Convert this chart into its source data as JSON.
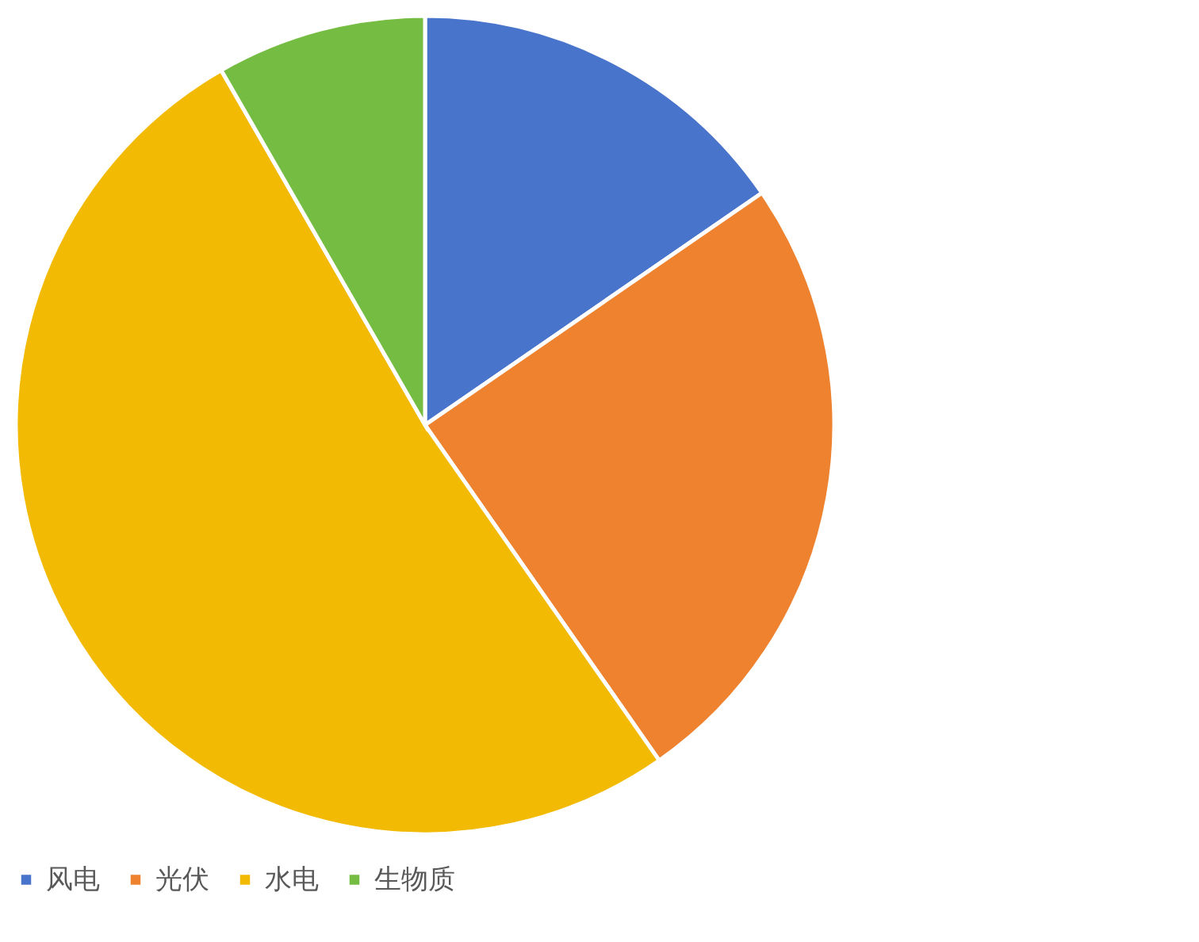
{
  "chart_data": {
    "type": "pie",
    "categories": [
      "风电",
      "光伏",
      "水电",
      "生物质"
    ],
    "values": [
      15.4,
      24.9,
      51.4,
      8.3
    ],
    "colors": [
      "#4874cb",
      "#ee822f",
      "#f2ba02",
      "#75bd42"
    ],
    "legend": "bottom"
  }
}
